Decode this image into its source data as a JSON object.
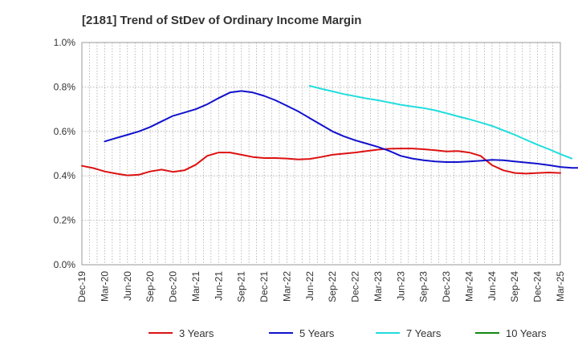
{
  "chart_data": {
    "type": "line",
    "title": "[2181]  Trend of StDev of Ordinary Income Margin",
    "xlabel": "",
    "ylabel": "",
    "x_ticks": [
      "Dec-19",
      "Mar-20",
      "Jun-20",
      "Sep-20",
      "Dec-20",
      "Mar-21",
      "Jun-21",
      "Sep-21",
      "Dec-21",
      "Mar-22",
      "Jun-22",
      "Sep-22",
      "Dec-22",
      "Mar-23",
      "Jun-23",
      "Sep-23",
      "Dec-23",
      "Mar-24",
      "Jun-24",
      "Sep-24",
      "Dec-24",
      "Mar-25"
    ],
    "y_ticks": [
      "0.0%",
      "0.2%",
      "0.4%",
      "0.6%",
      "0.8%",
      "1.0%"
    ],
    "ylim": [
      0,
      1.0
    ],
    "y_unit": "%",
    "grid": true,
    "legend_position": "bottom",
    "series": [
      {
        "name": "3 Years",
        "color": "#dd1111",
        "start": "Dec-19",
        "values": [
          0.445,
          0.435,
          0.42,
          0.41,
          0.402,
          0.405,
          0.42,
          0.428,
          0.418,
          0.425,
          0.45,
          0.49,
          0.505,
          0.505,
          0.495,
          0.485,
          0.48,
          0.48,
          0.478,
          0.474,
          0.476,
          0.485,
          0.495,
          0.5,
          0.505,
          0.512,
          0.518,
          0.522,
          0.523,
          0.523,
          0.52,
          0.515,
          0.51,
          0.512,
          0.505,
          0.49,
          0.448,
          0.425,
          0.413,
          0.41,
          0.413,
          0.415,
          0.413
        ]
      },
      {
        "name": "5 Years",
        "color": "#1111cc",
        "start": "Dec-19",
        "values": [
          null,
          null,
          0.555,
          0.57,
          0.585,
          0.6,
          0.62,
          0.645,
          0.67,
          0.685,
          0.7,
          0.722,
          0.75,
          0.775,
          0.782,
          0.775,
          0.76,
          0.74,
          0.715,
          0.69,
          0.66,
          0.63,
          0.6,
          0.578,
          0.56,
          0.545,
          0.53,
          0.512,
          0.49,
          0.478,
          0.47,
          0.465,
          0.462,
          0.462,
          0.465,
          0.468,
          0.472,
          0.47,
          0.465,
          0.46,
          0.455,
          0.448,
          0.44,
          0.436,
          0.436
        ]
      },
      {
        "name": "7 Years",
        "color": "#22dddd",
        "start": "Dec-19",
        "values": [
          null,
          null,
          null,
          null,
          null,
          null,
          null,
          null,
          null,
          null,
          null,
          null,
          null,
          null,
          null,
          null,
          null,
          null,
          null,
          null,
          0.805,
          0.792,
          0.78,
          0.768,
          0.758,
          0.748,
          0.74,
          0.73,
          0.72,
          0.712,
          0.705,
          0.695,
          0.682,
          0.668,
          0.655,
          0.64,
          0.625,
          0.605,
          0.585,
          0.562,
          0.54,
          0.52,
          0.498,
          0.478
        ]
      },
      {
        "name": "10 Years",
        "color": "#118811",
        "start": "Dec-19",
        "values": []
      }
    ]
  }
}
